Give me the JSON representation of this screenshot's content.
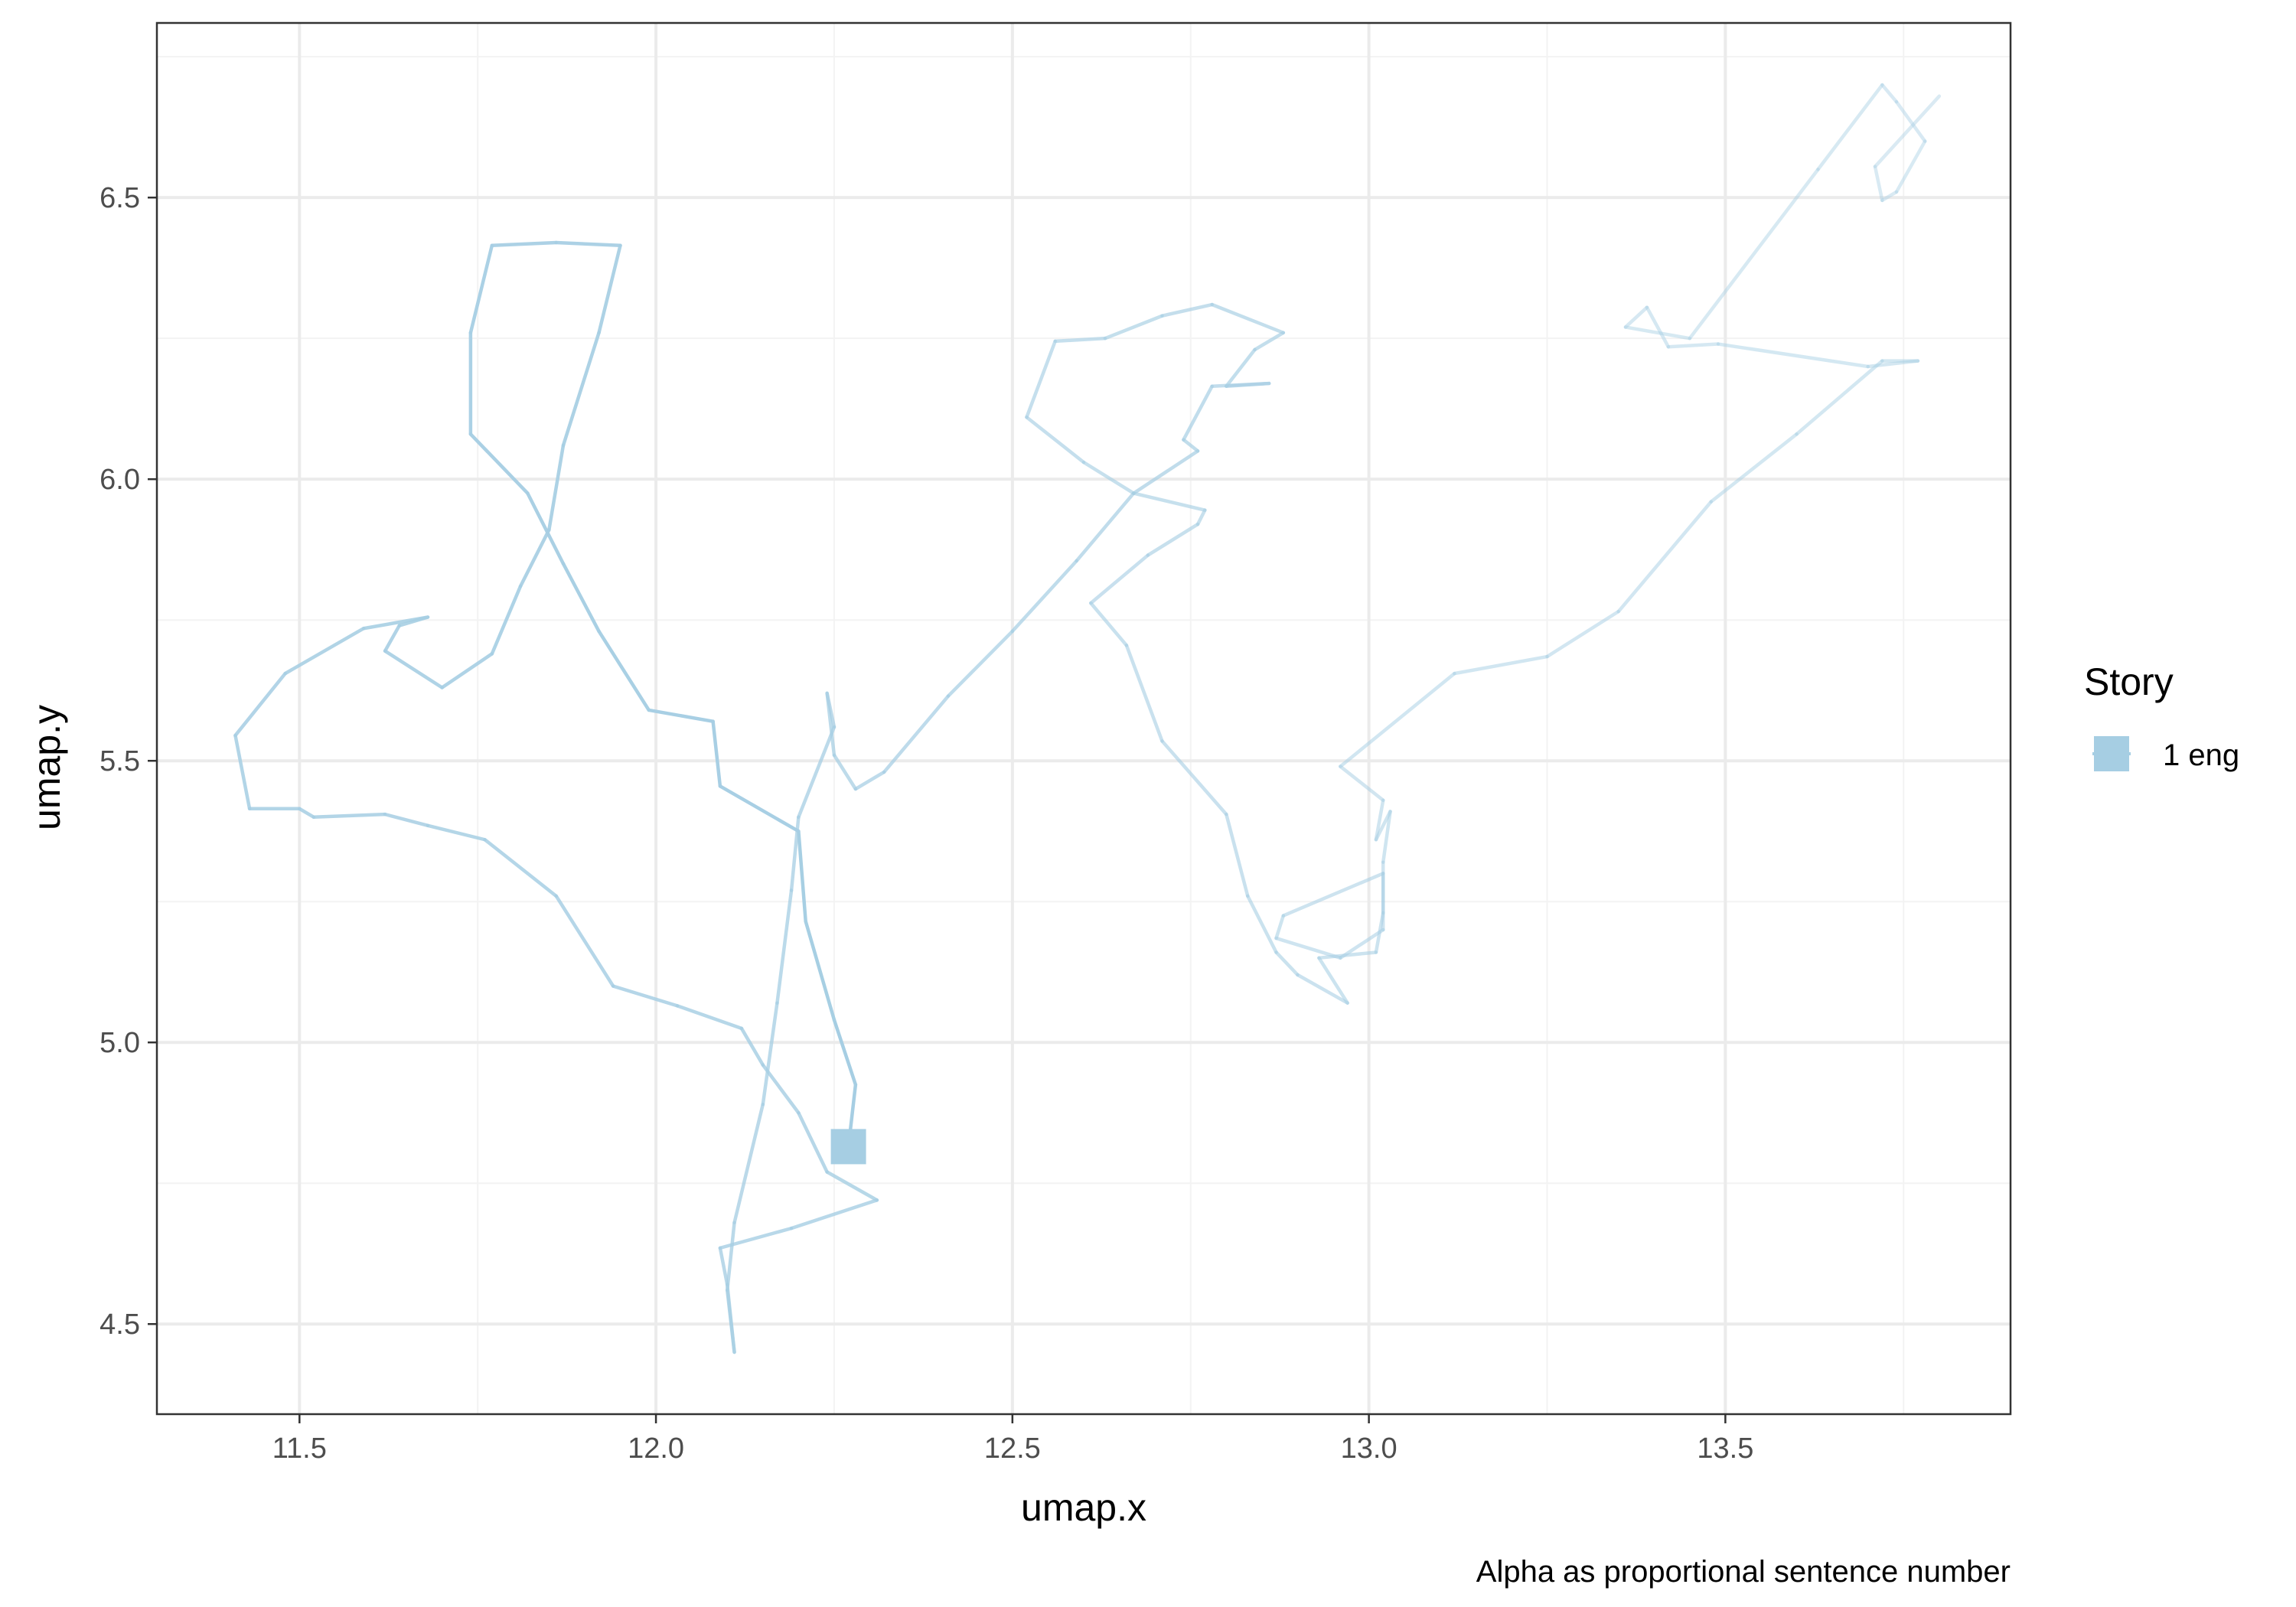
{
  "chart_data": {
    "type": "line",
    "xlabel": "umap.x",
    "ylabel": "umap.y",
    "xlim": [
      11.3,
      13.9
    ],
    "ylim": [
      4.34,
      6.81
    ],
    "x_ticks": [
      11.5,
      12.0,
      12.5,
      13.0,
      13.5
    ],
    "x_tick_labels": [
      "11.5",
      "12.0",
      "12.5",
      "13.0",
      "13.5"
    ],
    "y_ticks": [
      4.5,
      5.0,
      5.5,
      6.0,
      6.5
    ],
    "y_tick_labels": [
      "4.5",
      "5.0",
      "5.5",
      "6.0",
      "6.5"
    ],
    "grid": true,
    "legend": {
      "title": "Story",
      "position": "right",
      "entries": [
        "1 eng"
      ]
    },
    "caption": "Alpha as proportional sentence number",
    "colors": {
      "series": "#a6cee3",
      "grid_major": "#ebebeb",
      "grid_minor": "#f3f3f3",
      "panel_border": "#333333"
    },
    "series": [
      {
        "name": "1 eng",
        "marker": {
          "shape": "square",
          "x": 12.27,
          "y": 4.815
        },
        "alpha_range": [
          1.0,
          0.42
        ],
        "points": [
          [
            12.27,
            4.815
          ],
          [
            12.28,
            4.925
          ],
          [
            12.25,
            5.04
          ],
          [
            12.21,
            5.215
          ],
          [
            12.2,
            5.375
          ],
          [
            12.09,
            5.455
          ],
          [
            12.08,
            5.57
          ],
          [
            11.99,
            5.59
          ],
          [
            11.92,
            5.73
          ],
          [
            11.87,
            5.85
          ],
          [
            11.82,
            5.975
          ],
          [
            11.74,
            6.08
          ],
          [
            11.74,
            6.26
          ],
          [
            11.77,
            6.415
          ],
          [
            11.86,
            6.42
          ],
          [
            11.95,
            6.415
          ],
          [
            11.92,
            6.26
          ],
          [
            11.87,
            6.06
          ],
          [
            11.85,
            5.91
          ],
          [
            11.81,
            5.81
          ],
          [
            11.77,
            5.69
          ],
          [
            11.7,
            5.63
          ],
          [
            11.62,
            5.695
          ],
          [
            11.64,
            5.74
          ],
          [
            11.68,
            5.755
          ],
          [
            11.59,
            5.735
          ],
          [
            11.48,
            5.655
          ],
          [
            11.41,
            5.545
          ],
          [
            11.43,
            5.415
          ],
          [
            11.5,
            5.415
          ],
          [
            11.52,
            5.4
          ],
          [
            11.62,
            5.405
          ],
          [
            11.68,
            5.385
          ],
          [
            11.76,
            5.36
          ],
          [
            11.86,
            5.26
          ],
          [
            11.94,
            5.1
          ],
          [
            12.03,
            5.065
          ],
          [
            12.12,
            5.025
          ],
          [
            12.15,
            4.96
          ],
          [
            12.2,
            4.875
          ],
          [
            12.24,
            4.77
          ],
          [
            12.31,
            4.72
          ],
          [
            12.19,
            4.67
          ],
          [
            12.09,
            4.635
          ],
          [
            12.1,
            4.57
          ],
          [
            12.11,
            4.45
          ],
          [
            12.1,
            4.56
          ],
          [
            12.11,
            4.68
          ],
          [
            12.15,
            4.89
          ],
          [
            12.17,
            5.07
          ],
          [
            12.19,
            5.27
          ],
          [
            12.2,
            5.4
          ],
          [
            12.25,
            5.56
          ],
          [
            12.24,
            5.62
          ],
          [
            12.25,
            5.51
          ],
          [
            12.28,
            5.45
          ],
          [
            12.32,
            5.48
          ],
          [
            12.41,
            5.615
          ],
          [
            12.5,
            5.73
          ],
          [
            12.59,
            5.855
          ],
          [
            12.67,
            5.975
          ],
          [
            12.76,
            6.05
          ],
          [
            12.74,
            6.07
          ],
          [
            12.78,
            6.165
          ],
          [
            12.86,
            6.17
          ],
          [
            12.8,
            6.165
          ],
          [
            12.84,
            6.23
          ],
          [
            12.88,
            6.26
          ],
          [
            12.78,
            6.31
          ],
          [
            12.71,
            6.29
          ],
          [
            12.63,
            6.25
          ],
          [
            12.56,
            6.245
          ],
          [
            12.52,
            6.11
          ],
          [
            12.6,
            6.03
          ],
          [
            12.67,
            5.975
          ],
          [
            12.77,
            5.945
          ],
          [
            12.76,
            5.92
          ],
          [
            12.69,
            5.865
          ],
          [
            12.61,
            5.78
          ],
          [
            12.66,
            5.705
          ],
          [
            12.71,
            5.535
          ],
          [
            12.8,
            5.405
          ],
          [
            12.83,
            5.26
          ],
          [
            12.87,
            5.16
          ],
          [
            12.9,
            5.12
          ],
          [
            12.97,
            5.07
          ],
          [
            12.93,
            5.15
          ],
          [
            13.01,
            5.16
          ],
          [
            13.02,
            5.23
          ],
          [
            13.02,
            5.3
          ],
          [
            12.88,
            5.225
          ],
          [
            12.87,
            5.185
          ],
          [
            12.96,
            5.15
          ],
          [
            13.02,
            5.2
          ],
          [
            13.02,
            5.32
          ],
          [
            13.03,
            5.41
          ],
          [
            13.01,
            5.36
          ],
          [
            13.02,
            5.43
          ],
          [
            12.96,
            5.49
          ],
          [
            13.12,
            5.655
          ],
          [
            13.25,
            5.685
          ],
          [
            13.35,
            5.765
          ],
          [
            13.48,
            5.96
          ],
          [
            13.6,
            6.08
          ],
          [
            13.72,
            6.21
          ],
          [
            13.77,
            6.21
          ],
          [
            13.7,
            6.2
          ],
          [
            13.49,
            6.24
          ],
          [
            13.42,
            6.235
          ],
          [
            13.39,
            6.305
          ],
          [
            13.36,
            6.27
          ],
          [
            13.45,
            6.25
          ],
          [
            13.63,
            6.55
          ],
          [
            13.72,
            6.7
          ],
          [
            13.74,
            6.67
          ],
          [
            13.78,
            6.6
          ],
          [
            13.74,
            6.51
          ],
          [
            13.72,
            6.495
          ],
          [
            13.71,
            6.555
          ],
          [
            13.8,
            6.68
          ]
        ]
      }
    ]
  }
}
